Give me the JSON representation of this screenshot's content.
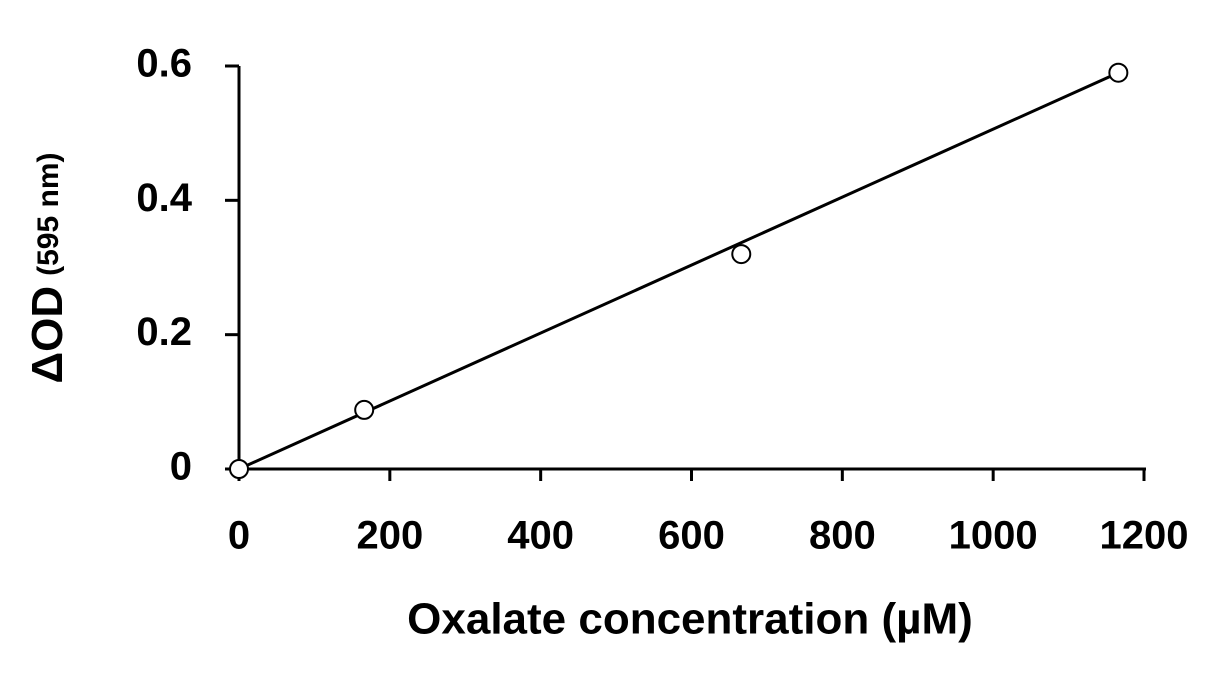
{
  "chart_data": {
    "type": "scatter",
    "x_label": "Oxalate concentration (µM)",
    "y_label": "ΔOD",
    "y_label_unit": "(595 nm)",
    "series": [
      {
        "type": "scatter",
        "color": "#000000",
        "x": [
          0,
          166,
          666,
          1166
        ],
        "values": [
          0,
          0.088,
          0.32,
          0.59
        ]
      },
      {
        "type": "line",
        "color": "#000000",
        "x": [
          0,
          1166
        ],
        "values": [
          0,
          0.59
        ]
      }
    ],
    "xlim": [
      0,
      1200
    ],
    "xticks": [
      0,
      200,
      400,
      600,
      800,
      1000,
      1200
    ],
    "ylim": [
      0,
      0.6
    ],
    "yticks": [
      0,
      0.2,
      0.4,
      0.6
    ],
    "grid": false
  }
}
